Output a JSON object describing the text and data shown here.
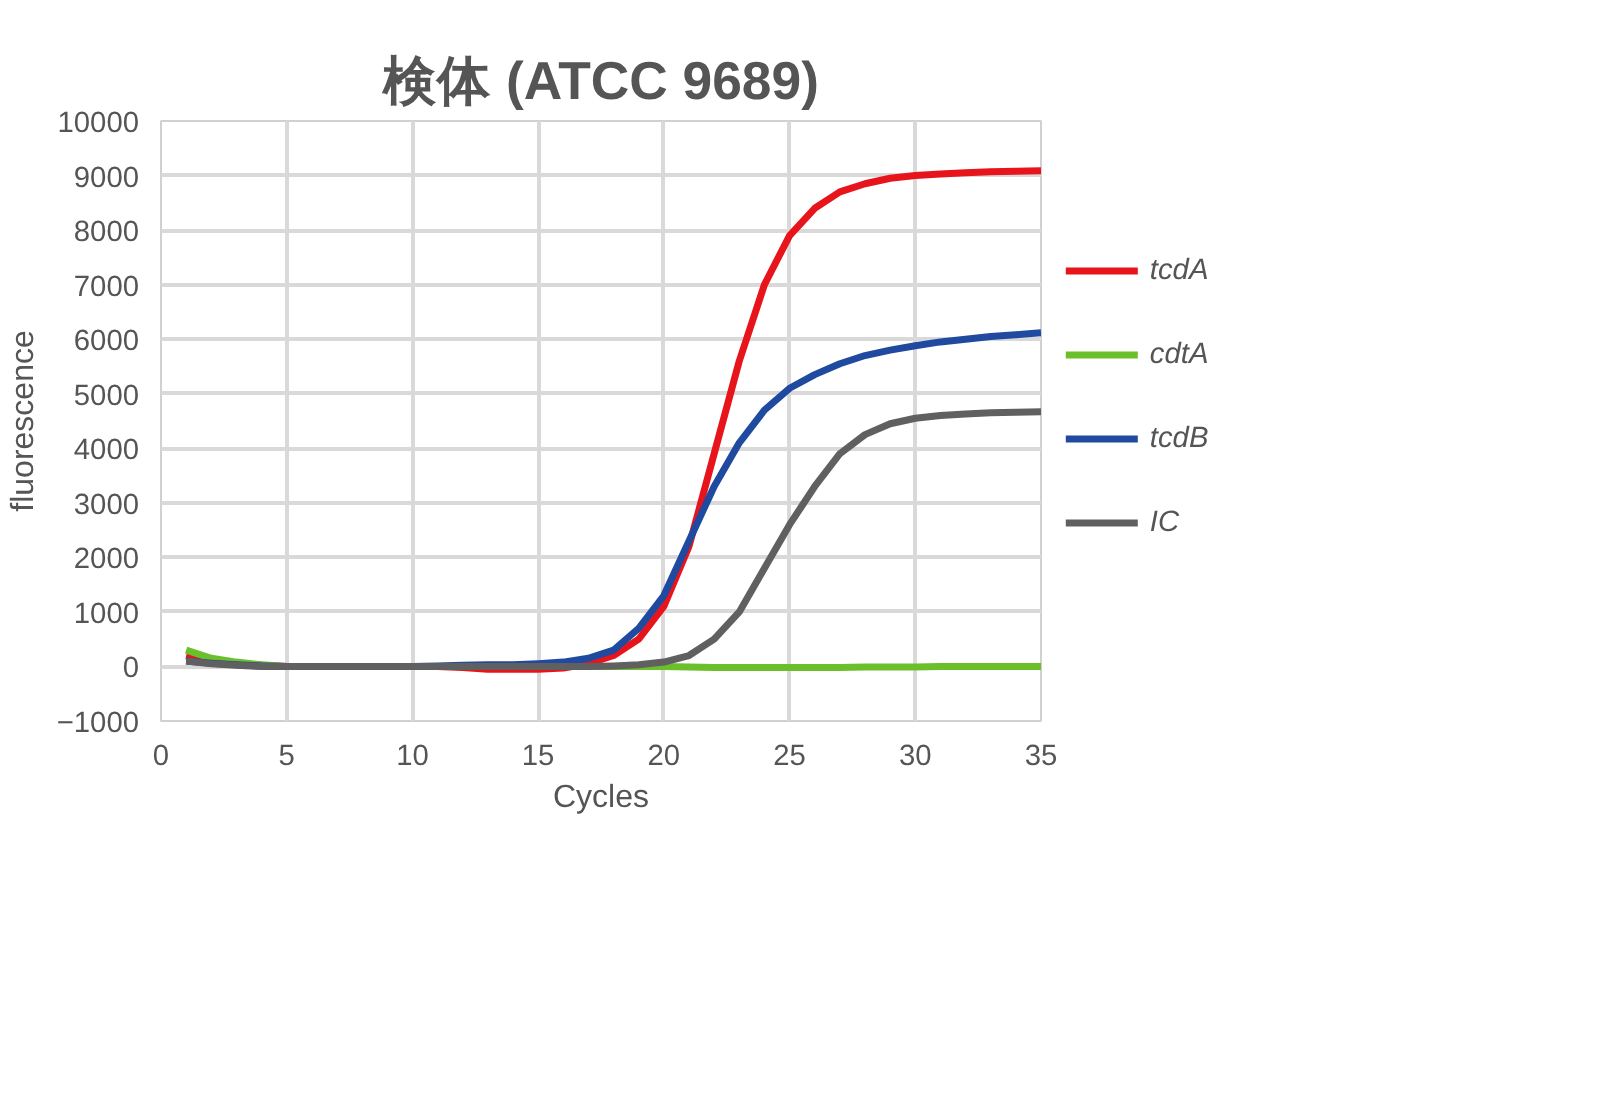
{
  "chart_data": {
    "type": "line",
    "title": "検体 (ATCC 9689)",
    "xlabel": "Cycles",
    "ylabel": "fluorescence",
    "x": [
      1,
      2,
      3,
      4,
      5,
      6,
      7,
      8,
      9,
      10,
      11,
      12,
      13,
      14,
      15,
      16,
      17,
      18,
      19,
      20,
      21,
      22,
      23,
      24,
      25,
      26,
      27,
      28,
      29,
      30,
      31,
      32,
      33,
      34,
      35
    ],
    "series": [
      {
        "name": "tcdA",
        "color": "#e8141c",
        "values": [
          200,
          100,
          50,
          20,
          0,
          0,
          0,
          0,
          0,
          0,
          0,
          -20,
          -50,
          -50,
          -50,
          -30,
          50,
          200,
          500,
          1100,
          2200,
          3900,
          5600,
          7000,
          7900,
          8400,
          8700,
          8850,
          8950,
          9000,
          9030,
          9050,
          9070,
          9080,
          9090
        ]
      },
      {
        "name": "cdtA",
        "color": "#6abf2a",
        "values": [
          300,
          150,
          80,
          30,
          0,
          0,
          0,
          0,
          0,
          0,
          0,
          0,
          0,
          0,
          0,
          0,
          0,
          0,
          0,
          0,
          -10,
          -20,
          -20,
          -20,
          -20,
          -20,
          -20,
          -10,
          -10,
          -10,
          0,
          0,
          0,
          0,
          0
        ]
      },
      {
        "name": "tcdB",
        "color": "#1f4aa0",
        "values": [
          100,
          60,
          30,
          10,
          0,
          0,
          0,
          0,
          0,
          0,
          10,
          20,
          30,
          30,
          50,
          80,
          150,
          300,
          700,
          1300,
          2300,
          3300,
          4100,
          4700,
          5100,
          5350,
          5550,
          5700,
          5800,
          5880,
          5950,
          6000,
          6050,
          6080,
          6120
        ]
      },
      {
        "name": "IC",
        "color": "#606060",
        "values": [
          100,
          50,
          20,
          0,
          0,
          0,
          0,
          0,
          0,
          0,
          0,
          0,
          0,
          0,
          0,
          0,
          0,
          10,
          30,
          80,
          200,
          500,
          1000,
          1800,
          2600,
          3300,
          3900,
          4250,
          4450,
          4550,
          4600,
          4630,
          4650,
          4660,
          4670
        ]
      }
    ],
    "xlim": [
      0,
      35
    ],
    "xticks": [
      0,
      5,
      10,
      15,
      20,
      25,
      30,
      35
    ],
    "ylim": [
      -1000,
      10000
    ],
    "yticks": [
      -1000,
      0,
      1000,
      2000,
      3000,
      4000,
      5000,
      6000,
      7000,
      8000,
      9000,
      10000
    ],
    "grid": true,
    "legend": "right",
    "line_style": "solid"
  }
}
